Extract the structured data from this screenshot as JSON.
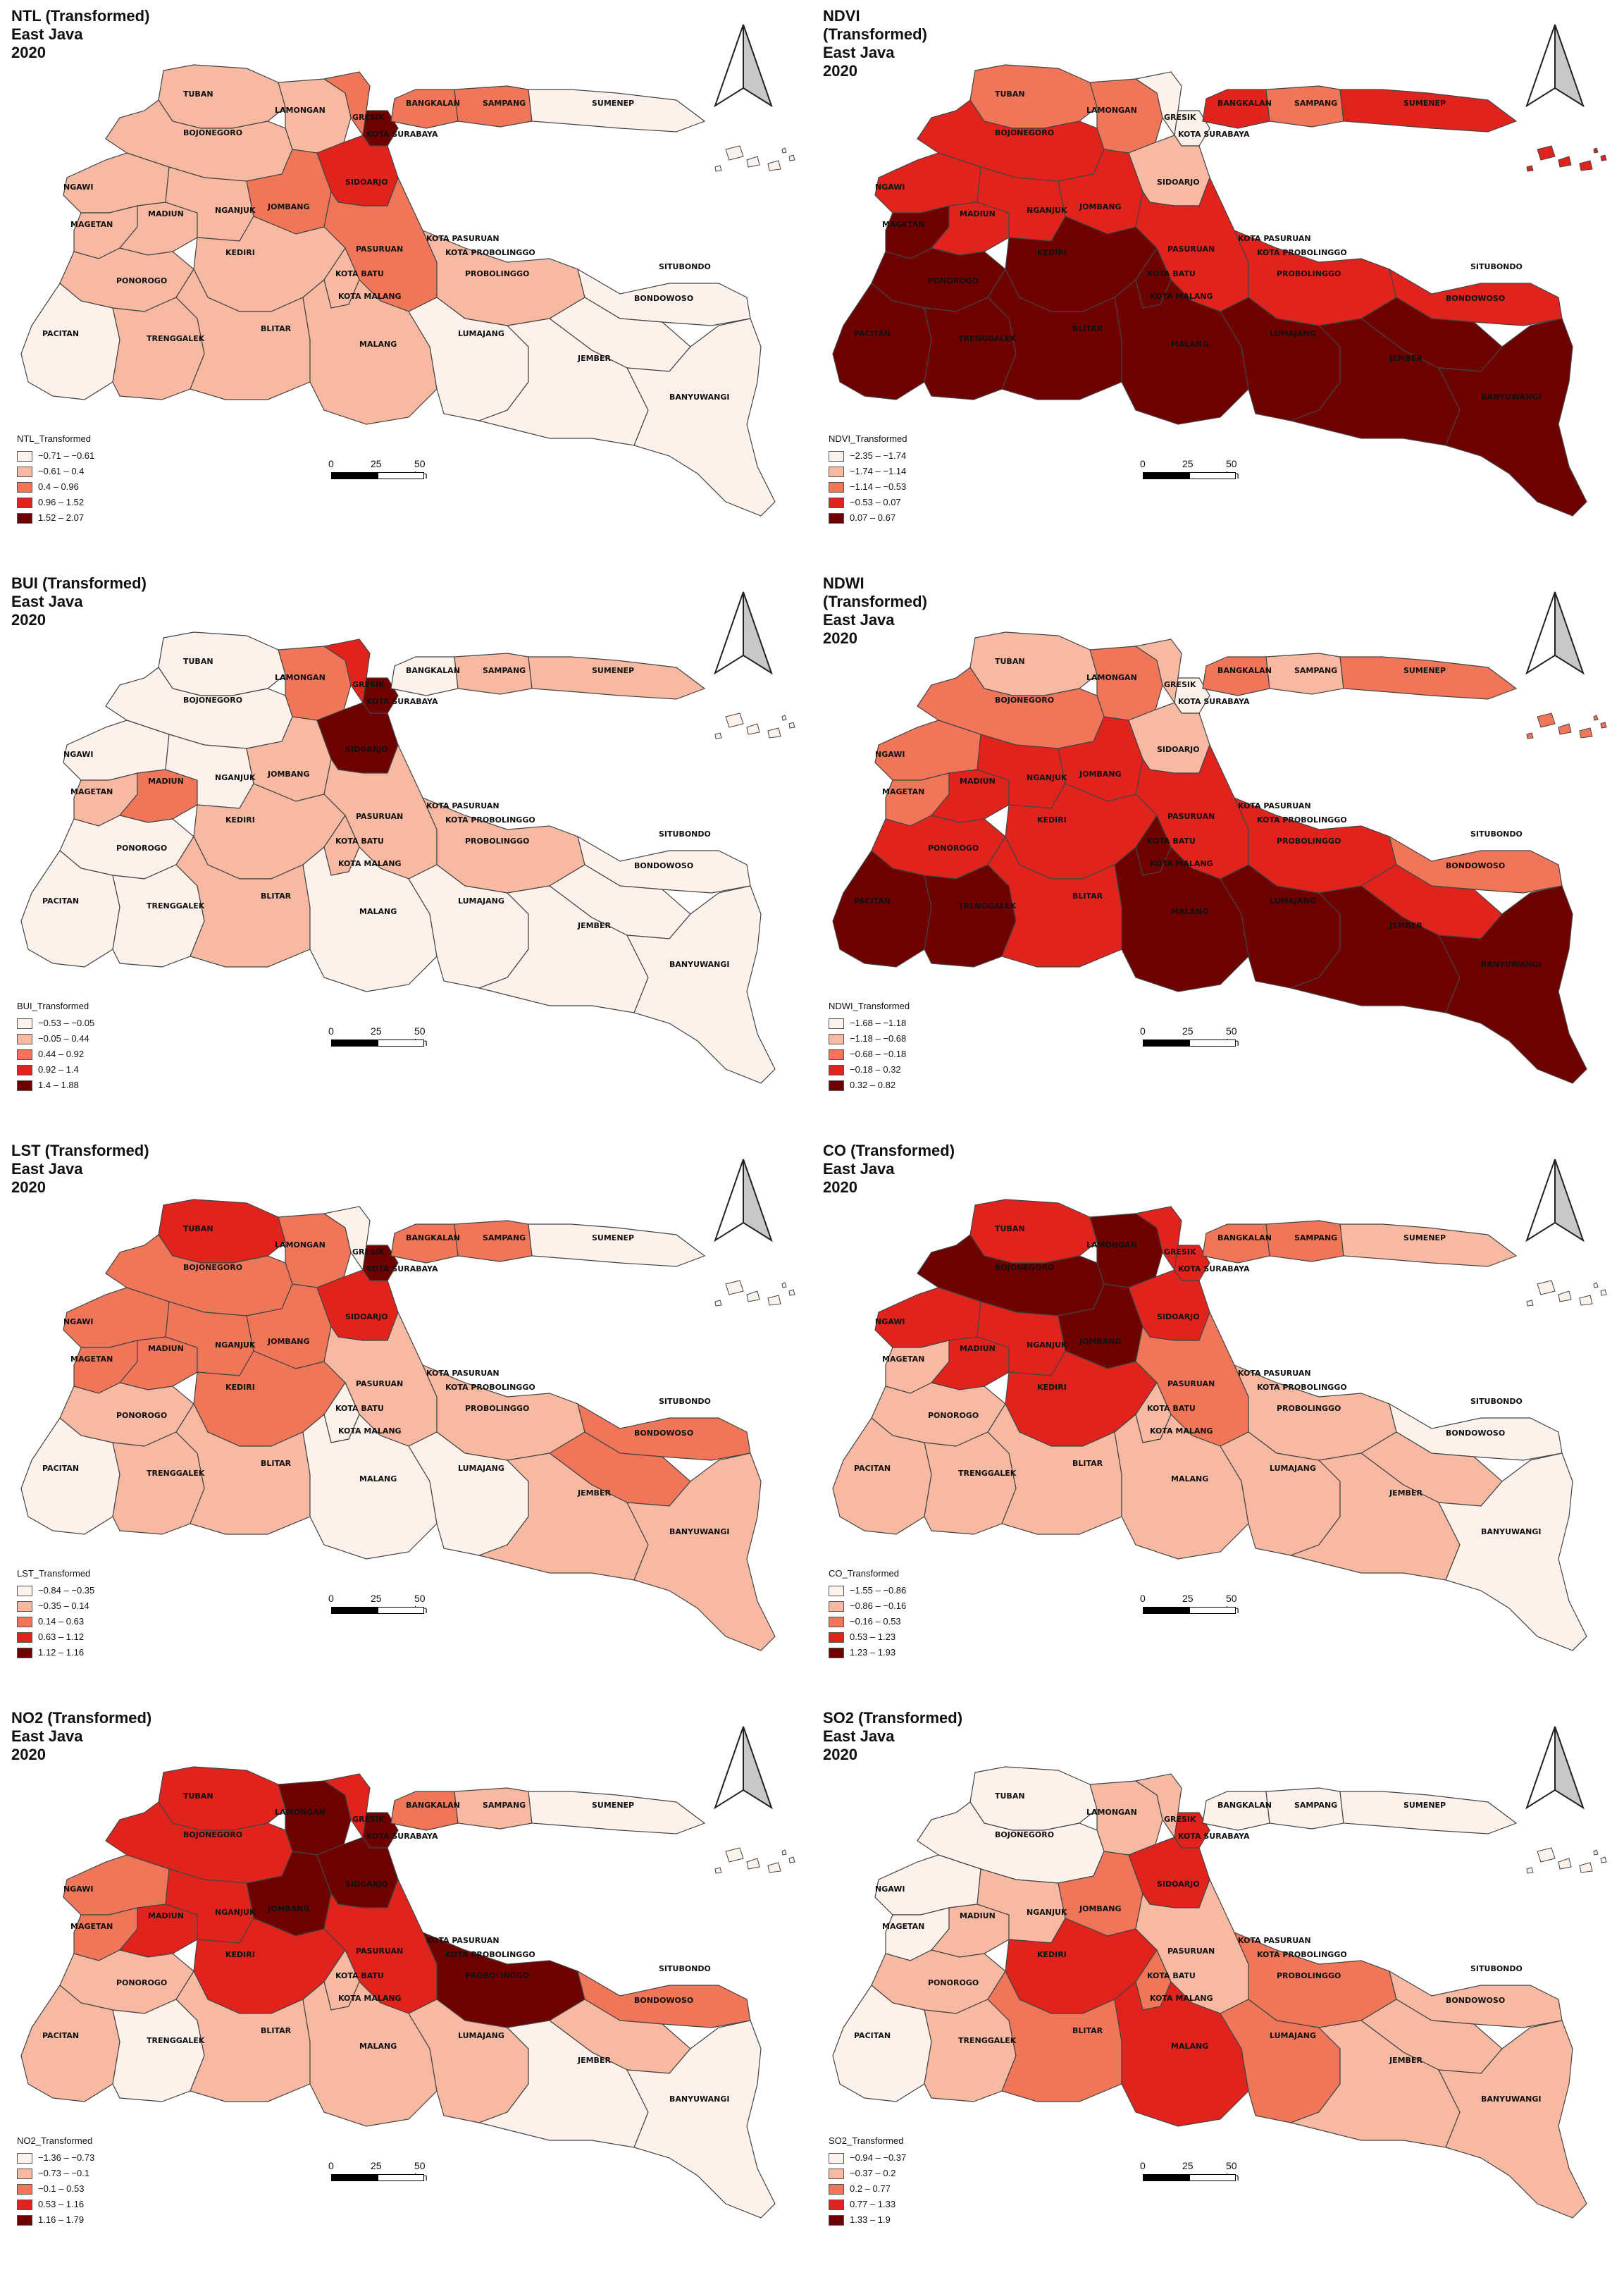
{
  "scale_bar": {
    "labels": [
      "0",
      "25",
      "50 km"
    ]
  },
  "region_labels": [
    "TUBAN",
    "LAMONGAN",
    "BOJONEGORO",
    "GRESIK",
    "KOTA SURABAYA",
    "BANGKALAN",
    "SAMPANG",
    "SUMENEP",
    "NGAWI",
    "MAGETAN",
    "MADIUN",
    "NGANJUK",
    "JOMBANG",
    "SIDOARJO",
    "KOTA PASURUAN",
    "PASURUAN",
    "KOTA PROBOLINGGO",
    "PROBOLINGGO",
    "SITUBONDO",
    "BONDOWOSO",
    "KEDIRI",
    "KOTA BATU",
    "KOTA MALANG",
    "PONOROGO",
    "PACITAN",
    "TRENGGALEK",
    "BLITAR",
    "MALANG",
    "LUMAJANG",
    "JEMBER",
    "BANYUWANGI"
  ],
  "palette": [
    "#fdf1ec",
    "#f7b9a2",
    "#f0765a",
    "#e0231d",
    "#6e0000"
  ],
  "panels": [
    {
      "title": "NTL (Transformed)\nEast Java\n2020",
      "legend_title": "NTL_Transformed",
      "legend": [
        "−0.71 – −0.61",
        "−0.61 – 0.4",
        "0.4 – 0.96",
        "0.96 – 1.52",
        "1.52 – 2.07"
      ],
      "classes": {
        "TUBAN": 1,
        "LAMONGAN": 1,
        "BOJONEGORO": 1,
        "GRESIK": 2,
        "KOTA SURABAYA": 4,
        "BANGKALAN": 2,
        "SAMPANG": 2,
        "SUMENEP": 0,
        "NGAWI": 1,
        "MAGETAN": 1,
        "MADIUN": 1,
        "NGANJUK": 1,
        "JOMBANG": 2,
        "SIDOARJO": 3,
        "KOTA PASURUAN": 4,
        "PASURUAN": 2,
        "KOTA PROBOLINGGO": 4,
        "PROBOLINGGO": 1,
        "SITUBONDO": 0,
        "BONDOWOSO": 0,
        "KEDIRI": 1,
        "KOTA BATU": 1,
        "KOTA MALANG": 4,
        "PONOROGO": 1,
        "PACITAN": 0,
        "TRENGGALEK": 1,
        "BLITAR": 1,
        "MALANG": 1,
        "LUMAJANG": 0,
        "JEMBER": 0,
        "BANYUWANGI": 0,
        "ISLES": 0
      }
    },
    {
      "title": "NDVI\n(Transformed)\nEast Java\n2020",
      "legend_title": "NDVI_Transformed",
      "legend": [
        "−2.35 – −1.74",
        "−1.74 – −1.14",
        "−1.14 – −0.53",
        "−0.53 – 0.07",
        "0.07 – 0.67"
      ],
      "classes": {
        "TUBAN": 2,
        "LAMONGAN": 2,
        "BOJONEGORO": 3,
        "GRESIK": 0,
        "KOTA SURABAYA": 0,
        "BANGKALAN": 3,
        "SAMPANG": 2,
        "SUMENEP": 3,
        "NGAWI": 3,
        "MAGETAN": 4,
        "MADIUN": 3,
        "NGANJUK": 3,
        "JOMBANG": 3,
        "SIDOARJO": 1,
        "KOTA PASURUAN": 2,
        "PASURUAN": 3,
        "KOTA PROBOLINGGO": 2,
        "PROBOLINGGO": 3,
        "SITUBONDO": 3,
        "BONDOWOSO": 4,
        "KEDIRI": 4,
        "KOTA BATU": 4,
        "KOTA MALANG": 1,
        "PONOROGO": 4,
        "PACITAN": 4,
        "TRENGGALEK": 4,
        "BLITAR": 4,
        "MALANG": 4,
        "LUMAJANG": 4,
        "JEMBER": 4,
        "BANYUWANGI": 4,
        "ISLES": 3
      }
    },
    {
      "title": "BUI (Transformed)\nEast Java\n2020",
      "legend_title": "BUI_Transformed",
      "legend": [
        "−0.53 – −0.05",
        "−0.05 – 0.44",
        "0.44 – 0.92",
        "0.92 – 1.4",
        "1.4 – 1.88"
      ],
      "classes": {
        "TUBAN": 0,
        "LAMONGAN": 2,
        "BOJONEGORO": 0,
        "GRESIK": 3,
        "KOTA SURABAYA": 4,
        "BANGKALAN": 0,
        "SAMPANG": 1,
        "SUMENEP": 1,
        "NGAWI": 0,
        "MAGETAN": 1,
        "MADIUN": 2,
        "NGANJUK": 0,
        "JOMBANG": 1,
        "SIDOARJO": 4,
        "KOTA PASURUAN": 3,
        "PASURUAN": 1,
        "KOTA PROBOLINGGO": 2,
        "PROBOLINGGO": 1,
        "SITUBONDO": 0,
        "BONDOWOSO": 0,
        "KEDIRI": 1,
        "KOTA BATU": 1,
        "KOTA MALANG": 3,
        "PONOROGO": 0,
        "PACITAN": 0,
        "TRENGGALEK": 0,
        "BLITAR": 1,
        "MALANG": 0,
        "LUMAJANG": 0,
        "JEMBER": 0,
        "BANYUWANGI": 0,
        "ISLES": 0
      }
    },
    {
      "title": "NDWI\n(Transformed)\nEast Java\n2020",
      "legend_title": "NDWI_Transformed",
      "legend": [
        "−1.68 – −1.18",
        "−1.18 – −0.68",
        "−0.68 – −0.18",
        "−0.18 – 0.32",
        "0.32 – 0.82"
      ],
      "classes": {
        "TUBAN": 1,
        "LAMONGAN": 2,
        "BOJONEGORO": 2,
        "GRESIK": 1,
        "KOTA SURABAYA": 0,
        "BANGKALAN": 2,
        "SAMPANG": 1,
        "SUMENEP": 2,
        "NGAWI": 2,
        "MAGETAN": 2,
        "MADIUN": 3,
        "NGANJUK": 3,
        "JOMBANG": 3,
        "SIDOARJO": 1,
        "KOTA PASURUAN": 2,
        "PASURUAN": 3,
        "KOTA PROBOLINGGO": 2,
        "PROBOLINGGO": 3,
        "SITUBONDO": 2,
        "BONDOWOSO": 3,
        "KEDIRI": 3,
        "KOTA BATU": 4,
        "KOTA MALANG": 0,
        "PONOROGO": 3,
        "PACITAN": 4,
        "TRENGGALEK": 4,
        "BLITAR": 3,
        "MALANG": 4,
        "LUMAJANG": 4,
        "JEMBER": 4,
        "BANYUWANGI": 4,
        "ISLES": 2
      }
    },
    {
      "title": "LST (Transformed)\nEast Java\n2020",
      "legend_title": "LST_Transformed",
      "legend": [
        "−0.84 – −0.35",
        "−0.35 – 0.14",
        "0.14 – 0.63",
        "0.63 – 1.12",
        "1.12 – 1.16"
      ],
      "classes": {
        "TUBAN": 3,
        "LAMONGAN": 2,
        "BOJONEGORO": 2,
        "GRESIK": 0,
        "KOTA SURABAYA": 4,
        "BANGKALAN": 2,
        "SAMPANG": 2,
        "SUMENEP": 0,
        "NGAWI": 2,
        "MAGETAN": 2,
        "MADIUN": 2,
        "NGANJUK": 2,
        "JOMBANG": 2,
        "SIDOARJO": 3,
        "KOTA PASURUAN": 3,
        "PASURUAN": 1,
        "KOTA PROBOLINGGO": 3,
        "PROBOLINGGO": 1,
        "SITUBONDO": 2,
        "BONDOWOSO": 2,
        "KEDIRI": 2,
        "KOTA BATU": 0,
        "KOTA MALANG": 3,
        "PONOROGO": 1,
        "PACITAN": 0,
        "TRENGGALEK": 1,
        "BLITAR": 1,
        "MALANG": 0,
        "LUMAJANG": 0,
        "JEMBER": 1,
        "BANYUWANGI": 1,
        "ISLES": 0
      }
    },
    {
      "title": "CO (Transformed)\nEast Java\n2020",
      "legend_title": "CO_Transformed",
      "legend": [
        "−1.55 – −0.86",
        "−0.86 – −0.16",
        "−0.16 – 0.53",
        "0.53 – 1.23",
        "1.23 – 1.93"
      ],
      "classes": {
        "TUBAN": 3,
        "LAMONGAN": 4,
        "BOJONEGORO": 4,
        "GRESIK": 3,
        "KOTA SURABAYA": 3,
        "BANGKALAN": 2,
        "SAMPANG": 2,
        "SUMENEP": 1,
        "NGAWI": 3,
        "MAGETAN": 1,
        "MADIUN": 3,
        "NGANJUK": 3,
        "JOMBANG": 4,
        "SIDOARJO": 3,
        "KOTA PASURUAN": 3,
        "PASURUAN": 2,
        "KOTA PROBOLINGGO": 2,
        "PROBOLINGGO": 1,
        "SITUBONDO": 0,
        "BONDOWOSO": 1,
        "KEDIRI": 3,
        "KOTA BATU": 1,
        "KOTA MALANG": 1,
        "PONOROGO": 1,
        "PACITAN": 1,
        "TRENGGALEK": 1,
        "BLITAR": 1,
        "MALANG": 1,
        "LUMAJANG": 1,
        "JEMBER": 1,
        "BANYUWANGI": 0,
        "ISLES": 0
      }
    },
    {
      "title": "NO2 (Transformed)\nEast Java\n2020",
      "legend_title": "NO2_Transformed",
      "legend": [
        "−1.36 – −0.73",
        "−0.73 – −0.1",
        "−0.1 – 0.53",
        "0.53 – 1.16",
        "1.16 – 1.79"
      ],
      "classes": {
        "TUBAN": 3,
        "LAMONGAN": 4,
        "BOJONEGORO": 3,
        "GRESIK": 3,
        "KOTA SURABAYA": 4,
        "BANGKALAN": 2,
        "SAMPANG": 1,
        "SUMENEP": 0,
        "NGAWI": 2,
        "MAGETAN": 2,
        "MADIUN": 3,
        "NGANJUK": 3,
        "JOMBANG": 4,
        "SIDOARJO": 4,
        "KOTA PASURUAN": 3,
        "PASURUAN": 3,
        "KOTA PROBOLINGGO": 4,
        "PROBOLINGGO": 4,
        "SITUBONDO": 2,
        "BONDOWOSO": 1,
        "KEDIRI": 3,
        "KOTA BATU": 1,
        "KOTA MALANG": 4,
        "PONOROGO": 1,
        "PACITAN": 1,
        "TRENGGALEK": 0,
        "BLITAR": 1,
        "MALANG": 1,
        "LUMAJANG": 1,
        "JEMBER": 0,
        "BANYUWANGI": 0,
        "ISLES": 0
      }
    },
    {
      "title": "SO2 (Transformed)\nEast Java\n2020",
      "legend_title": "SO2_Transformed",
      "legend": [
        "−0.94 – −0.37",
        "−0.37 – 0.2",
        "0.2 – 0.77",
        "0.77 – 1.33",
        "1.33 – 1.9"
      ],
      "classes": {
        "TUBAN": 0,
        "LAMONGAN": 1,
        "BOJONEGORO": 0,
        "GRESIK": 1,
        "KOTA SURABAYA": 3,
        "BANGKALAN": 0,
        "SAMPANG": 0,
        "SUMENEP": 0,
        "NGAWI": 0,
        "MAGETAN": 0,
        "MADIUN": 1,
        "NGANJUK": 1,
        "JOMBANG": 2,
        "SIDOARJO": 3,
        "KOTA PASURUAN": 3,
        "PASURUAN": 1,
        "KOTA PROBOLINGGO": 2,
        "PROBOLINGGO": 2,
        "SITUBONDO": 1,
        "BONDOWOSO": 1,
        "KEDIRI": 3,
        "KOTA BATU": 2,
        "KOTA MALANG": 4,
        "PONOROGO": 1,
        "PACITAN": 0,
        "TRENGGALEK": 1,
        "BLITAR": 2,
        "MALANG": 3,
        "LUMAJANG": 2,
        "JEMBER": 1,
        "BANYUWANGI": 1,
        "ISLES": 0
      }
    }
  ]
}
